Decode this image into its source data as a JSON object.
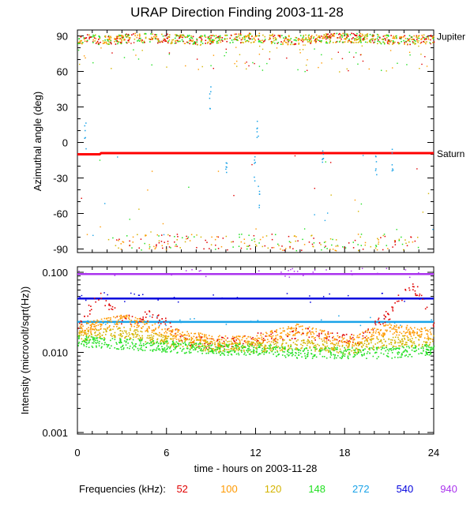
{
  "title": "URAP Direction Finding  2003-11-28",
  "xlabel": "time - hours on 2003-11-28",
  "legend": {
    "label": "Frequencies (kHz):",
    "items": [
      {
        "name": "52",
        "color": "#e00000"
      },
      {
        "name": "100",
        "color": "#ff9900"
      },
      {
        "name": "120",
        "color": "#d4b400"
      },
      {
        "name": "148",
        "color": "#22e022"
      },
      {
        "name": "272",
        "color": "#1aa3e8"
      },
      {
        "name": "540",
        "color": "#0000dd"
      },
      {
        "name": "940",
        "color": "#aa33ee"
      }
    ]
  },
  "chart_data": [
    {
      "type": "scatter",
      "ylabel": "Azimuthal angle (deg)",
      "xlim": [
        0,
        24
      ],
      "ylim": [
        -93,
        95
      ],
      "xticks": [
        "0",
        "6",
        "12",
        "18",
        "24"
      ],
      "yticks": [
        "90",
        "60",
        "30",
        "0",
        "-30",
        "-60",
        "-90"
      ],
      "annotations": [
        {
          "text": "Jupiter",
          "y": 90
        },
        {
          "text": "Saturn",
          "y": -9
        }
      ],
      "series": [
        {
          "name": "Saturn direction",
          "color": "#ff0000",
          "x": [
            0,
            1.5,
            1.6,
            24
          ],
          "y": [
            -10,
            -10,
            -9,
            -9
          ]
        },
        {
          "name": "148",
          "color": "#22e022",
          "x": [
            0,
            2,
            4,
            6,
            8,
            10,
            12,
            14,
            16,
            18,
            20,
            22,
            24
          ],
          "y": [
            88,
            87,
            89,
            88,
            87,
            88,
            89,
            87,
            88,
            89,
            88,
            87,
            88
          ]
        },
        {
          "name": "272",
          "color": "#1aa3e8",
          "x": [
            0.5,
            8.9,
            10,
            11.9,
            12.1,
            12.2,
            16.5,
            20.1,
            21.2
          ],
          "y": [
            6,
            37,
            -14,
            -20,
            9,
            -45,
            -14,
            -20,
            -16
          ]
        }
      ]
    },
    {
      "type": "scatter",
      "ylabel": "Intensity (microvolt/sqrt(Hz))",
      "xlim": [
        0,
        24
      ],
      "ylim": [
        0.001,
        0.12
      ],
      "yscale": "log",
      "xticks": [
        "0",
        "6",
        "12",
        "18",
        "24"
      ],
      "yticks": [
        "0.100",
        "0.010",
        "0.001"
      ],
      "series": [
        {
          "name": "940",
          "color": "#aa33ee",
          "x": [
            0,
            24
          ],
          "y": [
            0.095,
            0.095
          ]
        },
        {
          "name": "540",
          "color": "#0000dd",
          "x": [
            0,
            24
          ],
          "y": [
            0.047,
            0.047
          ]
        },
        {
          "name": "272",
          "color": "#1aa3e8",
          "x": [
            0,
            24
          ],
          "y": [
            0.024,
            0.024
          ]
        },
        {
          "name": "52",
          "color": "#e00000",
          "x": [
            0,
            1.5,
            3,
            5,
            7,
            9,
            12,
            15,
            17,
            19,
            21,
            22.5,
            24
          ],
          "y": [
            0.02,
            0.05,
            0.025,
            0.03,
            0.015,
            0.013,
            0.015,
            0.018,
            0.016,
            0.015,
            0.03,
            0.07,
            0.02
          ]
        },
        {
          "name": "100",
          "color": "#ff9900",
          "x": [
            0,
            3,
            6,
            9,
            12,
            15,
            18,
            21,
            24
          ],
          "y": [
            0.019,
            0.026,
            0.018,
            0.014,
            0.014,
            0.02,
            0.013,
            0.02,
            0.017
          ]
        },
        {
          "name": "120",
          "color": "#d4b400",
          "x": [
            0,
            3,
            6,
            9,
            12,
            15,
            18,
            21,
            24
          ],
          "y": [
            0.016,
            0.018,
            0.014,
            0.012,
            0.012,
            0.013,
            0.011,
            0.014,
            0.014
          ]
        },
        {
          "name": "148",
          "color": "#22e022",
          "x": [
            0,
            3,
            6,
            9,
            12,
            15,
            18,
            21,
            24
          ],
          "y": [
            0.014,
            0.013,
            0.012,
            0.011,
            0.011,
            0.01,
            0.01,
            0.01,
            0.011
          ]
        }
      ]
    }
  ]
}
